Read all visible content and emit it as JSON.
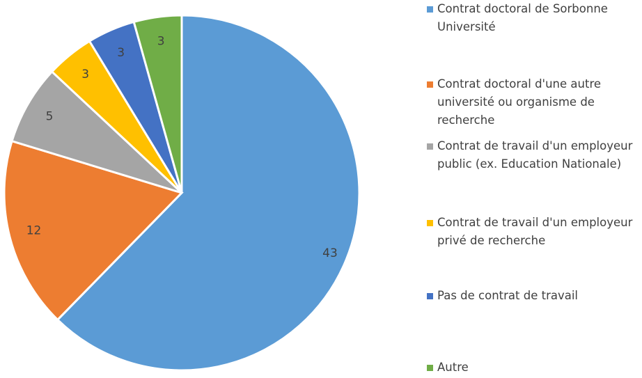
{
  "chart_data": {
    "type": "pie",
    "categories": [
      "Contrat doctoral de Sorbonne Université",
      "Contrat doctoral d'une autre université ou organisme de recherche",
      "Contrat de travail d'un employeur public (ex. Education Nationale)",
      "Contrat de travail d'un employeur privé de recherche",
      "Pas de contrat de travail",
      "Autre"
    ],
    "values": [
      43,
      12,
      5,
      3,
      3,
      3
    ],
    "colors": [
      "#5b9bd5",
      "#ed7d31",
      "#a5a5a5",
      "#ffc000",
      "#4472c4",
      "#70ad47"
    ],
    "legend": "right"
  }
}
